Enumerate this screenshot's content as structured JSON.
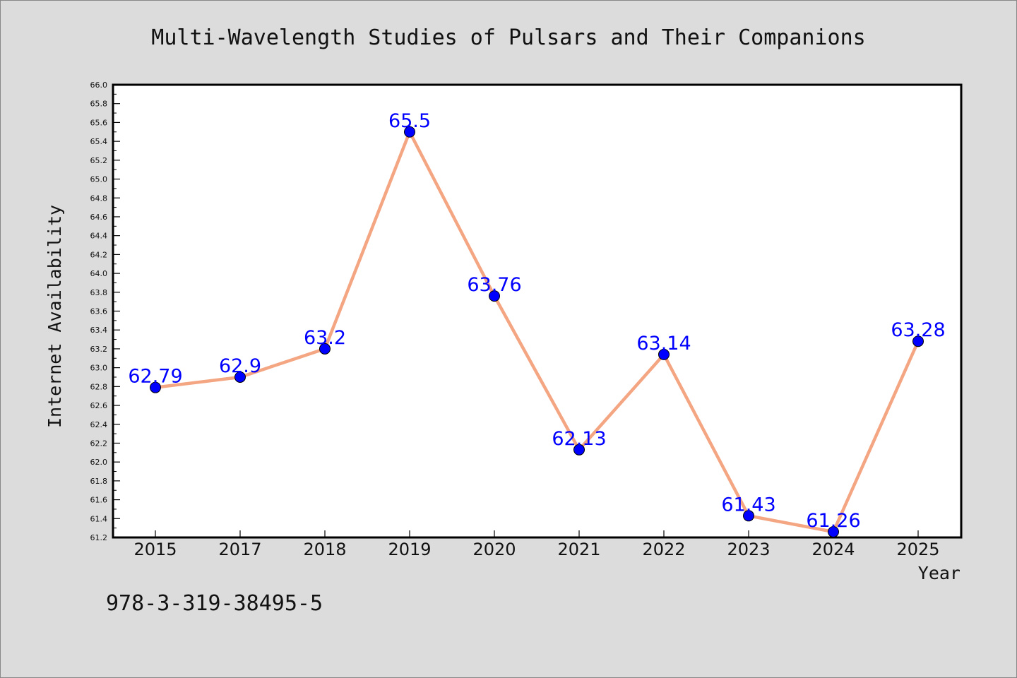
{
  "chart_data": {
    "type": "line",
    "title": "Multi-Wavelength Studies of Pulsars and Their Companions",
    "xlabel": "Year",
    "ylabel": "Internet Availability",
    "categories": [
      "2015",
      "2017",
      "2018",
      "2019",
      "2020",
      "2021",
      "2022",
      "2023",
      "2024",
      "2025"
    ],
    "values": [
      62.79,
      62.9,
      63.2,
      65.5,
      63.76,
      62.13,
      63.14,
      61.43,
      61.26,
      63.28
    ],
    "data_labels": [
      "62.79",
      "62.9",
      "63.2",
      "65.5",
      "63.76",
      "62.13",
      "63.14",
      "61.43",
      "61.26",
      "63.28"
    ],
    "ylim": [
      61.2,
      66.0
    ],
    "ytick_step": 0.2,
    "grid": false,
    "legend": "none",
    "line_color": "#f4a582",
    "marker_color": "#0000ff",
    "label_color": "#0000ff"
  },
  "footer": {
    "isbn": "978-3-319-38495-5"
  }
}
